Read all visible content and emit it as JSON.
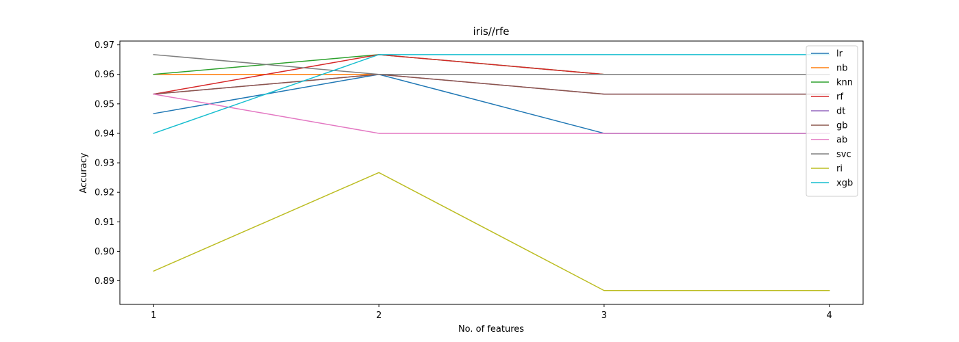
{
  "chart_data": {
    "type": "line",
    "title": "iris//rfe",
    "xlabel": "No. of features",
    "ylabel": "Accuracy",
    "x": [
      1,
      2,
      3,
      4
    ],
    "xlim": [
      0.85,
      4.15
    ],
    "ylim": [
      0.882,
      0.9713
    ],
    "yticks": [
      0.89,
      0.9,
      0.91,
      0.92,
      0.93,
      0.94,
      0.95,
      0.96,
      0.97
    ],
    "ytick_labels": [
      "0.89",
      "0.90",
      "0.91",
      "0.92",
      "0.93",
      "0.94",
      "0.95",
      "0.96",
      "0.97"
    ],
    "xtick_labels": [
      "1",
      "2",
      "3",
      "4"
    ],
    "grid": false,
    "legend_position": "top-right",
    "series": [
      {
        "name": "lr",
        "color": "#1f77b4",
        "values": [
          0.9467,
          0.96,
          0.94,
          0.94
        ]
      },
      {
        "name": "nb",
        "color": "#ff7f0e",
        "values": [
          0.96,
          0.96,
          0.96,
          0.96
        ]
      },
      {
        "name": "knn",
        "color": "#2ca02c",
        "values": [
          0.96,
          0.9667,
          0.96,
          0.96
        ]
      },
      {
        "name": "rf",
        "color": "#d62728",
        "values": [
          0.9533,
          0.9667,
          0.96,
          0.96
        ]
      },
      {
        "name": "dt",
        "color": "#9467bd",
        "values": [
          0.9533,
          0.96,
          0.9533,
          0.9533
        ]
      },
      {
        "name": "gb",
        "color": "#8c564b",
        "values": [
          0.9533,
          0.96,
          0.9533,
          0.9533
        ]
      },
      {
        "name": "ab",
        "color": "#e377c2",
        "values": [
          0.9533,
          0.94,
          0.94,
          0.94
        ]
      },
      {
        "name": "svc",
        "color": "#7f7f7f",
        "values": [
          0.9667,
          0.96,
          0.96,
          0.96
        ]
      },
      {
        "name": "ri",
        "color": "#bcbd22",
        "values": [
          0.8933,
          0.9267,
          0.8867,
          0.8867
        ]
      },
      {
        "name": "xgb",
        "color": "#17becf",
        "values": [
          0.94,
          0.9667,
          0.9667,
          0.9667
        ]
      }
    ]
  }
}
